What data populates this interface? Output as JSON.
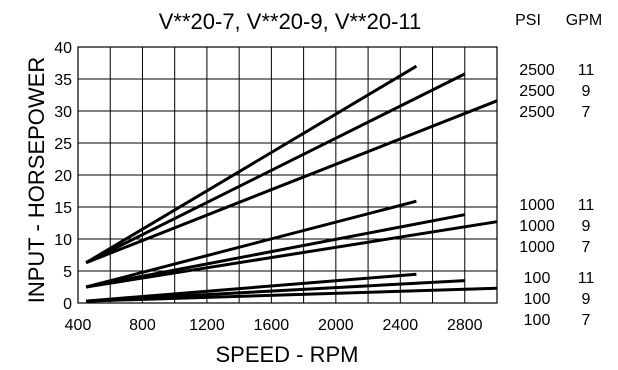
{
  "chart_data": {
    "type": "line",
    "title": "V**20-7, V**20-9, V**20-11",
    "xlabel": "SPEED - RPM",
    "ylabel": "INPUT - HORSEPOWER",
    "xlim": [
      400,
      3000
    ],
    "ylim": [
      0,
      40
    ],
    "x_ticks": [
      "400",
      "800",
      "1200",
      "1600",
      "2000",
      "2400",
      "2800"
    ],
    "y_ticks": [
      "0",
      "5",
      "10",
      "15",
      "20",
      "25",
      "30",
      "35",
      "40"
    ],
    "grid": true,
    "legend_headers": [
      "PSI",
      "GPM"
    ],
    "series": [
      {
        "psi": "2500",
        "gpm": "11",
        "x": [
          450,
          2500
        ],
        "y": [
          6.3,
          37
        ]
      },
      {
        "psi": "2500",
        "gpm": "9",
        "x": [
          450,
          2800
        ],
        "y": [
          6.3,
          35.8
        ]
      },
      {
        "psi": "2500",
        "gpm": "7",
        "x": [
          450,
          3000
        ],
        "y": [
          6.3,
          31.6
        ]
      },
      {
        "psi": "1000",
        "gpm": "11",
        "x": [
          450,
          2500
        ],
        "y": [
          2.5,
          15.9
        ]
      },
      {
        "psi": "1000",
        "gpm": "9",
        "x": [
          450,
          2800
        ],
        "y": [
          2.5,
          13.8
        ]
      },
      {
        "psi": "1000",
        "gpm": "7",
        "x": [
          450,
          3000
        ],
        "y": [
          2.5,
          12.7
        ]
      },
      {
        "psi": "100",
        "gpm": "11",
        "x": [
          450,
          2500
        ],
        "y": [
          0.3,
          4.5
        ]
      },
      {
        "psi": "100",
        "gpm": "9",
        "x": [
          450,
          2800
        ],
        "y": [
          0.3,
          3.5
        ]
      },
      {
        "psi": "100",
        "gpm": "7",
        "x": [
          450,
          3000
        ],
        "y": [
          0.3,
          2.3
        ]
      }
    ],
    "line_color": "#000000",
    "grid_color": "#000000"
  }
}
